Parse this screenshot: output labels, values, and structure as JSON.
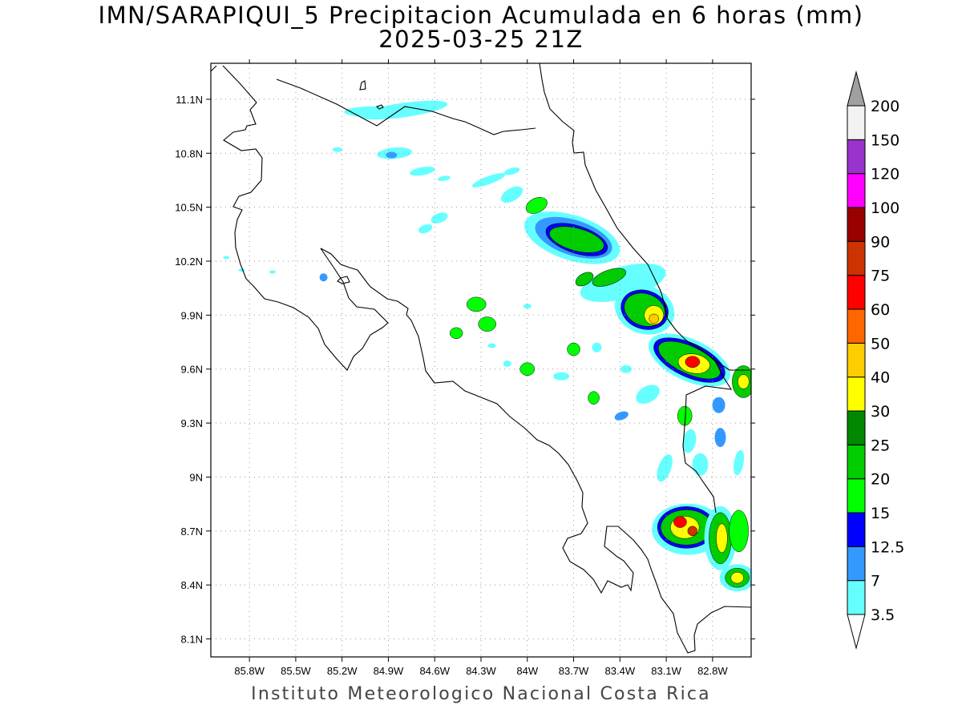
{
  "title": {
    "line1": "IMN/SARAPIQUI_5 Precipitacion Acumulada en 6 horas (mm)",
    "line2": "2025-03-25 21Z"
  },
  "credit": "Instituto Meteorologico Nacional Costa Rica",
  "map": {
    "lon_range": [
      -86.05,
      -82.55
    ],
    "lat_range": [
      8.0,
      11.3
    ],
    "lon_ticks": [
      {
        "value": -85.8,
        "label": "85.8W"
      },
      {
        "value": -85.5,
        "label": "85.5W"
      },
      {
        "value": -85.2,
        "label": "85.2W"
      },
      {
        "value": -84.9,
        "label": "84.9W"
      },
      {
        "value": -84.6,
        "label": "84.6W"
      },
      {
        "value": -84.3,
        "label": "84.3W"
      },
      {
        "value": -84.0,
        "label": "84W"
      },
      {
        "value": -83.7,
        "label": "83.7W"
      },
      {
        "value": -83.4,
        "label": "83.4W"
      },
      {
        "value": -83.1,
        "label": "83.1W"
      },
      {
        "value": -82.8,
        "label": "82.8W"
      }
    ],
    "lat_ticks": [
      {
        "value": 11.1,
        "label": "11.1N"
      },
      {
        "value": 10.8,
        "label": "10.8N"
      },
      {
        "value": 10.5,
        "label": "10.5N"
      },
      {
        "value": 10.2,
        "label": "10.2N"
      },
      {
        "value": 9.9,
        "label": "9.9N"
      },
      {
        "value": 9.6,
        "label": "9.6N"
      },
      {
        "value": 9.3,
        "label": "9.3N"
      },
      {
        "value": 9.0,
        "label": "9N"
      },
      {
        "value": 8.7,
        "label": "8.7N"
      },
      {
        "value": 8.4,
        "label": "8.4N"
      },
      {
        "value": 8.1,
        "label": "8.1N"
      }
    ],
    "grid": true
  },
  "colorbar": {
    "levels": [
      {
        "label": "3.5",
        "color": "#66ffff"
      },
      {
        "label": "7",
        "color": "#3399ff"
      },
      {
        "label": "12.5",
        "color": "#0000ff"
      },
      {
        "label": "15",
        "color": "#00ff00"
      },
      {
        "label": "20",
        "color": "#00cc00"
      },
      {
        "label": "25",
        "color": "#008800"
      },
      {
        "label": "30",
        "color": "#ffff00"
      },
      {
        "label": "40",
        "color": "#ffcc00"
      },
      {
        "label": "50",
        "color": "#ff6600"
      },
      {
        "label": "60",
        "color": "#ff0000"
      },
      {
        "label": "75",
        "color": "#cc3300"
      },
      {
        "label": "90",
        "color": "#990000"
      },
      {
        "label": "100",
        "color": "#ff00ff"
      },
      {
        "label": "120",
        "color": "#9933cc"
      },
      {
        "label": "150",
        "color": "#f2f2f2"
      },
      {
        "label": "200",
        "color": ""
      }
    ],
    "over_color": "#a0a0a0",
    "under_color": "#ffffff"
  },
  "precip_cells": [
    {
      "lon": -84.8,
      "lat": 11.04,
      "rx": 55,
      "ry": 9,
      "rot": -8,
      "level": 0
    },
    {
      "lon": -84.98,
      "lat": 11.03,
      "rx": 40,
      "ry": 7,
      "rot": 0,
      "level": 0
    },
    {
      "lon": -85.23,
      "lat": 10.82,
      "rx": 6,
      "ry": 3,
      "rot": 0,
      "level": 0
    },
    {
      "lon": -84.86,
      "lat": 10.8,
      "rx": 22,
      "ry": 7,
      "rot": -5,
      "level": 0
    },
    {
      "lon": -84.88,
      "lat": 10.79,
      "rx": 7,
      "ry": 4,
      "rot": 0,
      "level": 1
    },
    {
      "lon": -84.68,
      "lat": 10.7,
      "rx": 16,
      "ry": 5,
      "rot": -10,
      "level": 0
    },
    {
      "lon": -84.54,
      "lat": 10.66,
      "rx": 8,
      "ry": 3,
      "rot": -10,
      "level": 0
    },
    {
      "lon": -84.25,
      "lat": 10.65,
      "rx": 22,
      "ry": 5,
      "rot": -20,
      "level": 0
    },
    {
      "lon": -84.1,
      "lat": 10.7,
      "rx": 10,
      "ry": 4,
      "rot": -15,
      "level": 0
    },
    {
      "lon": -84.1,
      "lat": 10.57,
      "rx": 15,
      "ry": 8,
      "rot": -30,
      "level": 0
    },
    {
      "lon": -84.57,
      "lat": 10.44,
      "rx": 11,
      "ry": 6,
      "rot": -20,
      "level": 0
    },
    {
      "lon": -84.66,
      "lat": 10.38,
      "rx": 9,
      "ry": 5,
      "rot": -20,
      "level": 0
    },
    {
      "lon": -83.94,
      "lat": 10.51,
      "rx": 14,
      "ry": 9,
      "rot": -25,
      "level": 3
    },
    {
      "lon": -83.71,
      "lat": 10.33,
      "rx": 62,
      "ry": 28,
      "rot": 18,
      "level": 0
    },
    {
      "lon": -83.7,
      "lat": 10.33,
      "rx": 50,
      "ry": 22,
      "rot": 18,
      "level": 1
    },
    {
      "lon": -83.68,
      "lat": 10.32,
      "rx": 40,
      "ry": 17,
      "rot": 18,
      "level": 2
    },
    {
      "lon": -83.68,
      "lat": 10.32,
      "rx": 35,
      "ry": 14,
      "rot": 15,
      "level": 4
    },
    {
      "lon": -83.38,
      "lat": 10.08,
      "rx": 55,
      "ry": 20,
      "rot": -15,
      "level": 0
    },
    {
      "lon": -83.47,
      "lat": 10.11,
      "rx": 22,
      "ry": 9,
      "rot": -20,
      "level": 4
    },
    {
      "lon": -83.63,
      "lat": 10.1,
      "rx": 12,
      "ry": 7,
      "rot": -30,
      "level": 4
    },
    {
      "lon": -83.24,
      "lat": 9.93,
      "rx": 38,
      "ry": 30,
      "rot": 20,
      "level": 0
    },
    {
      "lon": -83.24,
      "lat": 9.93,
      "rx": 30,
      "ry": 24,
      "rot": 20,
      "level": 2
    },
    {
      "lon": -83.24,
      "lat": 9.93,
      "rx": 26,
      "ry": 20,
      "rot": 20,
      "level": 4
    },
    {
      "lon": -83.18,
      "lat": 9.9,
      "rx": 12,
      "ry": 12,
      "rot": 0,
      "level": 6
    },
    {
      "lon": -83.18,
      "lat": 9.88,
      "rx": 6,
      "ry": 6,
      "rot": 0,
      "level": 7
    },
    {
      "lon": -82.95,
      "lat": 9.65,
      "rx": 55,
      "ry": 26,
      "rot": 25,
      "level": 0
    },
    {
      "lon": -82.95,
      "lat": 9.65,
      "rx": 48,
      "ry": 21,
      "rot": 25,
      "level": 2
    },
    {
      "lon": -82.95,
      "lat": 9.65,
      "rx": 42,
      "ry": 17,
      "rot": 25,
      "level": 4
    },
    {
      "lon": -82.92,
      "lat": 9.63,
      "rx": 20,
      "ry": 12,
      "rot": 10,
      "level": 6
    },
    {
      "lon": -82.93,
      "lat": 9.64,
      "rx": 9,
      "ry": 7,
      "rot": 0,
      "level": 9
    },
    {
      "lon": -82.6,
      "lat": 9.53,
      "rx": 14,
      "ry": 20,
      "rot": 0,
      "level": 4
    },
    {
      "lon": -82.6,
      "lat": 9.53,
      "rx": 7,
      "ry": 9,
      "rot": 0,
      "level": 6
    },
    {
      "lon": -84.33,
      "lat": 9.96,
      "rx": 12,
      "ry": 9,
      "rot": 0,
      "level": 3
    },
    {
      "lon": -84.26,
      "lat": 9.85,
      "rx": 11,
      "ry": 9,
      "rot": 0,
      "level": 3
    },
    {
      "lon": -84.46,
      "lat": 9.8,
      "rx": 8,
      "ry": 7,
      "rot": 0,
      "level": 3
    },
    {
      "lon": -84.0,
      "lat": 9.6,
      "rx": 9,
      "ry": 8,
      "rot": 0,
      "level": 3
    },
    {
      "lon": -83.7,
      "lat": 9.71,
      "rx": 8,
      "ry": 8,
      "rot": 0,
      "level": 3
    },
    {
      "lon": -83.78,
      "lat": 9.56,
      "rx": 10,
      "ry": 5,
      "rot": 0,
      "level": 0
    },
    {
      "lon": -83.57,
      "lat": 9.44,
      "rx": 7,
      "ry": 8,
      "rot": 0,
      "level": 3
    },
    {
      "lon": -83.39,
      "lat": 9.34,
      "rx": 9,
      "ry": 5,
      "rot": -20,
      "level": 1
    },
    {
      "lon": -83.36,
      "lat": 9.6,
      "rx": 7,
      "ry": 5,
      "rot": 0,
      "level": 0
    },
    {
      "lon": -83.55,
      "lat": 9.72,
      "rx": 6,
      "ry": 6,
      "rot": 0,
      "level": 0
    },
    {
      "lon": -84.13,
      "lat": 9.63,
      "rx": 5,
      "ry": 4,
      "rot": 0,
      "level": 0
    },
    {
      "lon": -83.22,
      "lat": 9.46,
      "rx": 16,
      "ry": 10,
      "rot": -30,
      "level": 0
    },
    {
      "lon": -82.98,
      "lat": 9.34,
      "rx": 9,
      "ry": 12,
      "rot": 0,
      "level": 3
    },
    {
      "lon": -82.76,
      "lat": 9.4,
      "rx": 8,
      "ry": 10,
      "rot": 0,
      "level": 1
    },
    {
      "lon": -82.95,
      "lat": 9.2,
      "rx": 8,
      "ry": 15,
      "rot": 10,
      "level": 0
    },
    {
      "lon": -82.75,
      "lat": 9.22,
      "rx": 7,
      "ry": 12,
      "rot": 0,
      "level": 1
    },
    {
      "lon": -83.11,
      "lat": 9.05,
      "rx": 8,
      "ry": 18,
      "rot": 20,
      "level": 0
    },
    {
      "lon": -82.88,
      "lat": 9.07,
      "rx": 10,
      "ry": 14,
      "rot": 0,
      "level": 0
    },
    {
      "lon": -82.63,
      "lat": 9.08,
      "rx": 6,
      "ry": 16,
      "rot": 10,
      "level": 0
    },
    {
      "lon": -82.96,
      "lat": 8.71,
      "rx": 45,
      "ry": 32,
      "rot": 0,
      "level": 0
    },
    {
      "lon": -82.97,
      "lat": 8.72,
      "rx": 36,
      "ry": 26,
      "rot": 0,
      "level": 2
    },
    {
      "lon": -82.97,
      "lat": 8.72,
      "rx": 32,
      "ry": 22,
      "rot": 0,
      "level": 4
    },
    {
      "lon": -82.98,
      "lat": 8.72,
      "rx": 18,
      "ry": 14,
      "rot": 0,
      "level": 6
    },
    {
      "lon": -83.01,
      "lat": 8.75,
      "rx": 8,
      "ry": 7,
      "rot": 0,
      "level": 9
    },
    {
      "lon": -82.93,
      "lat": 8.7,
      "rx": 6,
      "ry": 6,
      "rot": 0,
      "level": 10
    },
    {
      "lon": -82.75,
      "lat": 8.66,
      "rx": 20,
      "ry": 40,
      "rot": 0,
      "level": 0
    },
    {
      "lon": -82.75,
      "lat": 8.66,
      "rx": 14,
      "ry": 32,
      "rot": 0,
      "level": 4
    },
    {
      "lon": -82.74,
      "lat": 8.66,
      "rx": 7,
      "ry": 18,
      "rot": 0,
      "level": 6
    },
    {
      "lon": -82.63,
      "lat": 8.7,
      "rx": 12,
      "ry": 26,
      "rot": 0,
      "level": 3
    },
    {
      "lon": -82.64,
      "lat": 8.44,
      "rx": 22,
      "ry": 17,
      "rot": 0,
      "level": 0
    },
    {
      "lon": -82.64,
      "lat": 8.44,
      "rx": 15,
      "ry": 12,
      "rot": 0,
      "level": 4
    },
    {
      "lon": -82.64,
      "lat": 8.44,
      "rx": 8,
      "ry": 7,
      "rot": 0,
      "level": 6
    },
    {
      "lon": -85.95,
      "lat": 10.22,
      "rx": 4,
      "ry": 2,
      "rot": 0,
      "level": 0
    },
    {
      "lon": -85.85,
      "lat": 10.15,
      "rx": 4,
      "ry": 2,
      "rot": 0,
      "level": 0
    },
    {
      "lon": -85.65,
      "lat": 10.14,
      "rx": 4,
      "ry": 2,
      "rot": 0,
      "level": 0
    },
    {
      "lon": -85.32,
      "lat": 10.11,
      "rx": 5,
      "ry": 5,
      "rot": 0,
      "level": 1
    },
    {
      "lon": -84.0,
      "lat": 9.95,
      "rx": 5,
      "ry": 3,
      "rot": 0,
      "level": 0
    },
    {
      "lon": -84.23,
      "lat": 9.73,
      "rx": 5,
      "ry": 3,
      "rot": 0,
      "level": 0
    }
  ]
}
